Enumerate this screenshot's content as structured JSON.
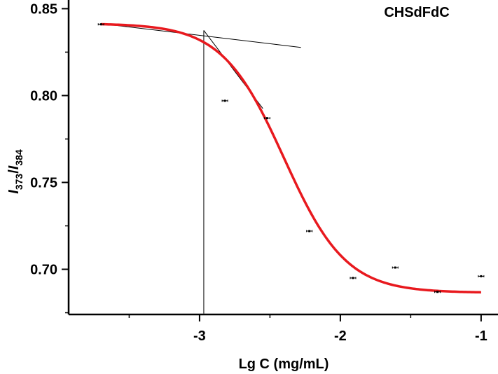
{
  "chart_data": {
    "type": "scatter",
    "title": "",
    "annotation": "CHSdFdC",
    "xlabel": "Lg C (mg/mL)",
    "ylabel": {
      "italic_a": "I",
      "sub_a": "373",
      "slash": "/",
      "italic_b": "I",
      "sub_b": "384"
    },
    "xlim": [
      -3.93,
      -0.88
    ],
    "ylim": [
      0.674,
      0.855
    ],
    "xticks": [
      -3,
      -2,
      -1
    ],
    "xtick_labels": [
      "-3",
      "-2",
      "-1"
    ],
    "yticks": [
      0.7,
      0.75,
      0.8,
      0.85
    ],
    "ytick_labels": [
      "0.70",
      "0.75",
      "0.80",
      "0.85"
    ],
    "grid": false,
    "colors": {
      "fit": "#e8191e",
      "points": "#000000",
      "guides": "#000000",
      "axes": "#000000"
    },
    "series": [
      {
        "type": "scatter",
        "x": [
          -3.7,
          -2.82,
          -2.52,
          -2.22,
          -1.91,
          -1.61,
          -1.31,
          -1.0
        ],
        "y": [
          0.841,
          0.797,
          0.787,
          0.722,
          0.695,
          0.701,
          0.687,
          0.696
        ],
        "error": 0.0007
      },
      {
        "type": "line",
        "model": "boltzmann",
        "params": {
          "A1": 0.8415,
          "A2": 0.6865,
          "x0": -2.4,
          "dx": 0.22
        },
        "x_range": [
          -3.7,
          -1.0
        ]
      }
    ],
    "guide_lines": [
      {
        "x1": -3.7,
        "y1": 0.8414,
        "x2": -2.28,
        "y2": 0.8277
      },
      {
        "x1": -2.97,
        "y1": 0.8375,
        "x2": -2.55,
        "y2": 0.7925
      },
      {
        "x1": -2.97,
        "y1": 0.8375,
        "x2": -2.97,
        "y2": 0.6745
      }
    ]
  }
}
